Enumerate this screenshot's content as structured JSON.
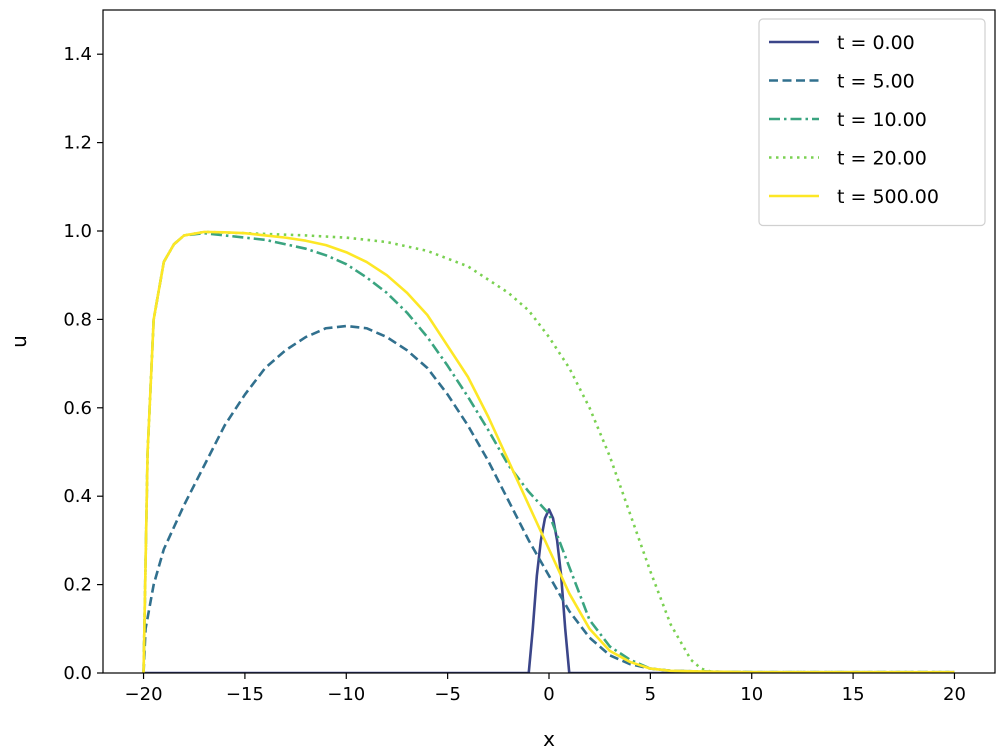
{
  "chart_data": {
    "type": "line",
    "title": "",
    "xlabel": "x",
    "ylabel": "u",
    "xlim": [
      -22,
      22
    ],
    "ylim": [
      0,
      1.5
    ],
    "xticks": [
      -20,
      -15,
      -10,
      -5,
      0,
      5,
      10,
      15,
      20
    ],
    "xtick_labels": [
      "−20",
      "−15",
      "−10",
      "−5",
      "0",
      "5",
      "10",
      "15",
      "20"
    ],
    "yticks": [
      0.0,
      0.2,
      0.4,
      0.6,
      0.8,
      1.0,
      1.2,
      1.4
    ],
    "ytick_labels": [
      "0.0",
      "0.2",
      "0.4",
      "0.6",
      "0.8",
      "1.0",
      "1.2",
      "1.4"
    ],
    "grid": false,
    "legend_position": "top-right",
    "series": [
      {
        "name": "t = 0.00",
        "color": "#3b4589",
        "dash": "solid",
        "x": [
          -20,
          -1.0,
          -0.8,
          -0.6,
          -0.4,
          -0.2,
          0.0,
          0.2,
          0.4,
          0.6,
          0.8,
          1.0,
          20
        ],
        "y": [
          0.0,
          0.0,
          0.1,
          0.22,
          0.3,
          0.35,
          0.37,
          0.35,
          0.3,
          0.22,
          0.1,
          0.0,
          0.0
        ]
      },
      {
        "name": "t = 5.00",
        "color": "#31708e",
        "dash": "dashed",
        "x": [
          -20,
          -19.9,
          -19.5,
          -19,
          -18,
          -17,
          -16,
          -15,
          -14,
          -13,
          -12,
          -11,
          -10,
          -9,
          -8,
          -7,
          -6,
          -5,
          -4,
          -3,
          -2,
          -1,
          0,
          1,
          2,
          3,
          4,
          5,
          6,
          8,
          10,
          20
        ],
        "y": [
          0.0,
          0.1,
          0.2,
          0.28,
          0.38,
          0.47,
          0.56,
          0.63,
          0.69,
          0.73,
          0.76,
          0.78,
          0.785,
          0.78,
          0.76,
          0.73,
          0.69,
          0.63,
          0.56,
          0.48,
          0.39,
          0.3,
          0.22,
          0.14,
          0.08,
          0.04,
          0.02,
          0.01,
          0.005,
          0.003,
          0.002,
          0.002
        ]
      },
      {
        "name": "t = 10.00",
        "color": "#3aa480",
        "dash": "dashdot",
        "x": [
          -20,
          -19.8,
          -19.5,
          -19,
          -18.5,
          -18,
          -17,
          -16,
          -15,
          -14,
          -13,
          -12,
          -11,
          -10,
          -9,
          -8,
          -7,
          -6,
          -5,
          -4,
          -3,
          -2,
          -1,
          0,
          1,
          2,
          3,
          4,
          5,
          6,
          8,
          10,
          20
        ],
        "y": [
          0.0,
          0.5,
          0.8,
          0.93,
          0.97,
          0.99,
          0.995,
          0.99,
          0.985,
          0.98,
          0.97,
          0.96,
          0.945,
          0.925,
          0.895,
          0.86,
          0.815,
          0.76,
          0.695,
          0.625,
          0.55,
          0.47,
          0.41,
          0.36,
          0.24,
          0.12,
          0.06,
          0.03,
          0.01,
          0.005,
          0.003,
          0.002,
          0.002
        ]
      },
      {
        "name": "t = 20.00",
        "color": "#7ad151",
        "dash": "dotted",
        "x": [
          -20,
          -19.8,
          -19.5,
          -19,
          -18.5,
          -18,
          -17,
          -15,
          -12,
          -10,
          -8,
          -6,
          -4,
          -2,
          -1,
          0,
          1,
          2,
          3,
          4,
          5,
          6,
          7,
          7.5,
          8,
          10,
          20
        ],
        "y": [
          0.0,
          0.5,
          0.8,
          0.93,
          0.97,
          0.99,
          0.998,
          0.995,
          0.99,
          0.985,
          0.975,
          0.955,
          0.92,
          0.86,
          0.82,
          0.76,
          0.69,
          0.6,
          0.49,
          0.36,
          0.23,
          0.11,
          0.03,
          0.01,
          0.003,
          0.002,
          0.002
        ]
      },
      {
        "name": "t = 500.00",
        "color": "#fde725",
        "dash": "solid",
        "x": [
          -20,
          -19.8,
          -19.5,
          -19,
          -18.5,
          -18,
          -17,
          -16,
          -15,
          -14,
          -13,
          -12,
          -11,
          -10,
          -9,
          -8,
          -7,
          -6,
          -5,
          -4,
          -3,
          -2,
          -1,
          0,
          1,
          2,
          3,
          4,
          5,
          6,
          8,
          10,
          20
        ],
        "y": [
          0.0,
          0.5,
          0.8,
          0.93,
          0.97,
          0.99,
          0.998,
          0.997,
          0.995,
          0.99,
          0.985,
          0.978,
          0.968,
          0.952,
          0.93,
          0.9,
          0.86,
          0.81,
          0.74,
          0.67,
          0.58,
          0.48,
          0.38,
          0.28,
          0.18,
          0.1,
          0.05,
          0.025,
          0.01,
          0.005,
          0.003,
          0.002,
          0.002
        ]
      }
    ]
  }
}
